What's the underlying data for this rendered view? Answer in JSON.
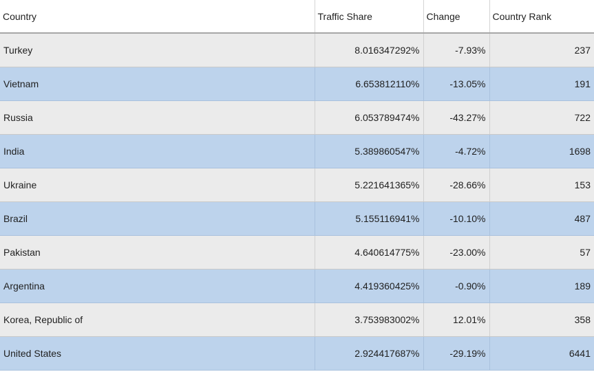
{
  "table": {
    "headers": {
      "country": "Country",
      "traffic_share": "Traffic Share",
      "change": "Change",
      "country_rank": "Country Rank"
    },
    "rows": [
      {
        "country": "Turkey",
        "traffic_share": "8.016347292%",
        "change": "-7.93%",
        "country_rank": "237"
      },
      {
        "country": "Vietnam",
        "traffic_share": "6.653812110%",
        "change": "-13.05%",
        "country_rank": "191"
      },
      {
        "country": "Russia",
        "traffic_share": "6.053789474%",
        "change": "-43.27%",
        "country_rank": "722"
      },
      {
        "country": "India",
        "traffic_share": "5.389860547%",
        "change": "-4.72%",
        "country_rank": "1698"
      },
      {
        "country": "Ukraine",
        "traffic_share": "5.221641365%",
        "change": "-28.66%",
        "country_rank": "153"
      },
      {
        "country": "Brazil",
        "traffic_share": "5.155116941%",
        "change": "-10.10%",
        "country_rank": "487"
      },
      {
        "country": "Pakistan",
        "traffic_share": "4.640614775%",
        "change": "-23.00%",
        "country_rank": "57"
      },
      {
        "country": "Argentina",
        "traffic_share": "4.419360425%",
        "change": "-0.90%",
        "country_rank": "189"
      },
      {
        "country": "Korea, Republic of",
        "traffic_share": "3.753983002%",
        "change": "12.01%",
        "country_rank": "358"
      },
      {
        "country": "United States",
        "traffic_share": "2.924417687%",
        "change": "-29.19%",
        "country_rank": "6441"
      }
    ]
  },
  "colors": {
    "row_odd": "#ebebeb",
    "row_even": "#bdd3ec",
    "header_bg": "#ffffff"
  }
}
